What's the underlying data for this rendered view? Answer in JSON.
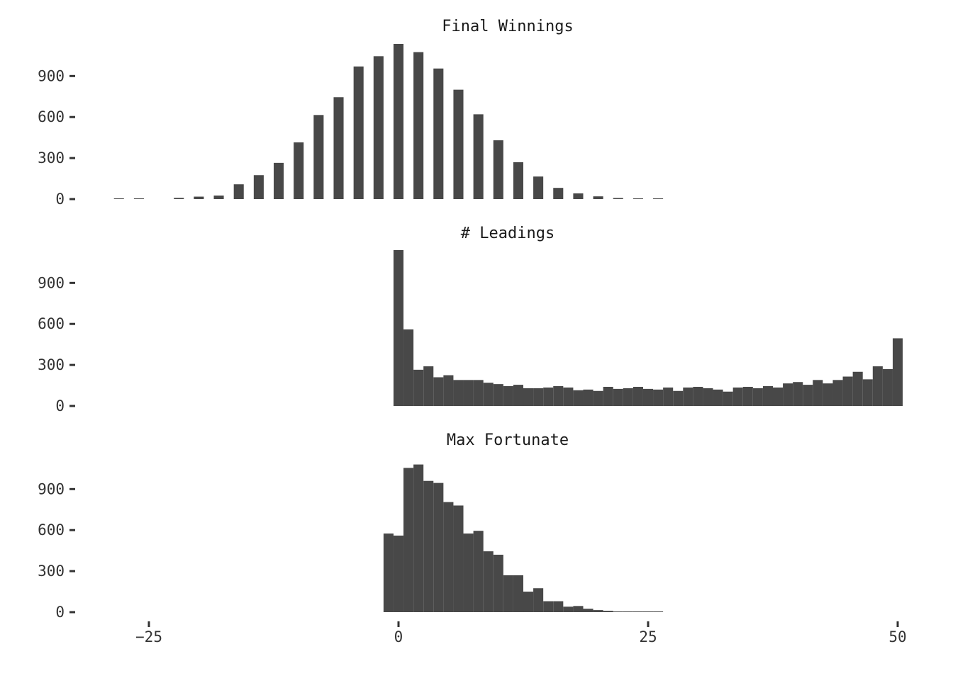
{
  "chart_data": [
    {
      "type": "bar",
      "title": "Final Winnings",
      "bin_width": 1,
      "x": [
        -28,
        -26,
        -24,
        -22,
        -20,
        -18,
        -16,
        -14,
        -12,
        -10,
        -8,
        -6,
        -4,
        -2,
        0,
        2,
        4,
        6,
        8,
        10,
        12,
        14,
        16,
        18,
        20,
        22,
        24,
        26
      ],
      "values": [
        2,
        3,
        0,
        9,
        18,
        26,
        108,
        175,
        265,
        415,
        615,
        745,
        970,
        1045,
        1135,
        1075,
        955,
        800,
        620,
        430,
        270,
        165,
        82,
        42,
        20,
        8,
        3,
        1
      ],
      "yticks": [
        0,
        300,
        600,
        900
      ],
      "ylim": [
        0,
        1140
      ]
    },
    {
      "type": "bar",
      "title": "# Leadings",
      "bin_width": 1,
      "x": [
        -0.5,
        0.5,
        1.5,
        2.5,
        3.5,
        4.5,
        5.5,
        6.5,
        7.5,
        8.5,
        9.5,
        10.5,
        11.5,
        12.5,
        13.5,
        14.5,
        15.5,
        16.5,
        17.5,
        18.5,
        19.5,
        20.5,
        21.5,
        22.5,
        23.5,
        24.5,
        25.5,
        26.5,
        27.5,
        28.5,
        29.5,
        30.5,
        31.5,
        32.5,
        33.5,
        34.5,
        35.5,
        36.5,
        37.5,
        38.5,
        39.5,
        40.5,
        41.5,
        42.5,
        43.5,
        44.5,
        45.5,
        46.5,
        47.5,
        48.5,
        49.5
      ],
      "values": [
        1140,
        560,
        265,
        290,
        210,
        225,
        190,
        190,
        190,
        170,
        160,
        145,
        155,
        130,
        130,
        135,
        145,
        135,
        115,
        120,
        110,
        140,
        125,
        130,
        140,
        125,
        120,
        135,
        110,
        135,
        140,
        130,
        120,
        105,
        135,
        140,
        130,
        145,
        135,
        165,
        175,
        155,
        190,
        165,
        190,
        215,
        250,
        195,
        290,
        270,
        495
      ],
      "yticks": [
        0,
        300,
        600,
        900
      ],
      "ylim": [
        0,
        1140
      ]
    },
    {
      "type": "bar",
      "title": "Max Fortunate",
      "bin_width": 1,
      "x": [
        -1.5,
        -0.5,
        0.5,
        1.5,
        2.5,
        3.5,
        4.5,
        5.5,
        6.5,
        7.5,
        8.5,
        9.5,
        10.5,
        11.5,
        12.5,
        13.5,
        14.5,
        15.5,
        16.5,
        17.5,
        18.5,
        19.5,
        20.5,
        21.5,
        22.5,
        23.5,
        24.5,
        25.5
      ],
      "values": [
        575,
        560,
        1055,
        1080,
        960,
        945,
        805,
        780,
        575,
        595,
        445,
        420,
        270,
        270,
        150,
        175,
        80,
        80,
        40,
        45,
        25,
        15,
        10,
        5,
        5,
        3,
        1,
        1
      ],
      "yticks": [
        0,
        300,
        600,
        900
      ],
      "ylim": [
        0,
        1140
      ]
    }
  ],
  "x_axis": {
    "ticks": [
      -25,
      0,
      25,
      50
    ],
    "tick_labels": [
      "−25",
      "0",
      "25",
      "50"
    ],
    "xlim": [
      -32,
      50.5
    ]
  },
  "colors": {
    "bar": "#484848",
    "text": "#333333",
    "title": "#1a1a1a",
    "background": "#ffffff"
  }
}
